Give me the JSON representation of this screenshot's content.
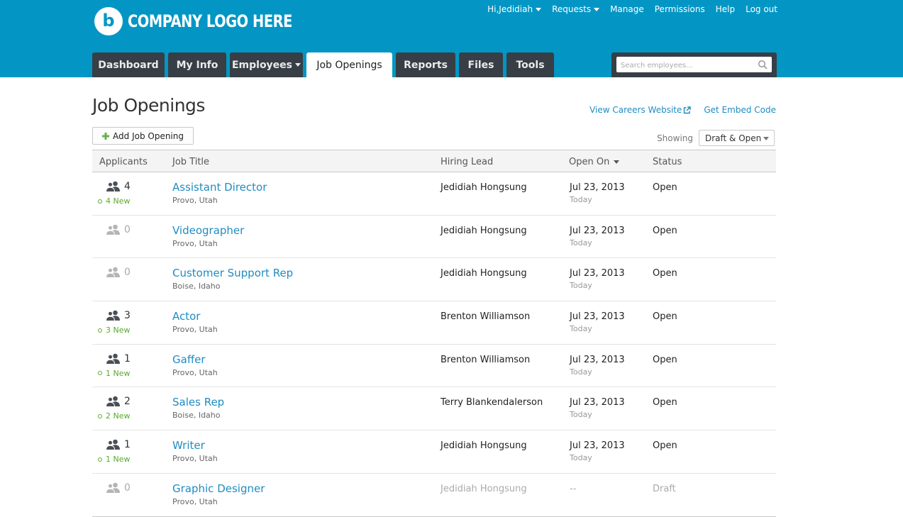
{
  "brand": {
    "logo_letter": "b",
    "logo_text": "COMPANY LOGO HERE",
    "header_color": "#0396c5"
  },
  "topnav": {
    "greeting": "Hi,Jedidiah",
    "requests": "Requests",
    "manage": "Manage",
    "permissions": "Permissions",
    "help": "Help",
    "logout": "Log out"
  },
  "tabs": [
    {
      "label": "Dashboard"
    },
    {
      "label": "My Info"
    },
    {
      "label": "Employees"
    },
    {
      "label": "Job Openings"
    },
    {
      "label": "Reports"
    },
    {
      "label": "Files"
    },
    {
      "label": "Tools"
    }
  ],
  "search": {
    "placeholder": "Search employees..."
  },
  "page": {
    "title": "Job Openings",
    "view_careers": "View Careers Website",
    "embed_code": "Get Embed Code",
    "add_button": "Add Job Opening",
    "showing_label": "Showing",
    "showing_value": "Draft & Open"
  },
  "table": {
    "headers": {
      "applicants": "Applicants",
      "job_title": "Job Title",
      "hiring_lead": "Hiring Lead",
      "open_on": "Open On",
      "status": "Status"
    },
    "rows": [
      {
        "count": "4",
        "new": "4 New",
        "title": "Assistant Director",
        "location": "Provo, Utah",
        "lead": "Jedidiah Hongsung",
        "date": "Jul 23, 2013",
        "date_sub": "Today",
        "status": "Open"
      },
      {
        "count": "0",
        "new": "",
        "title": "Videographer",
        "location": "Provo, Utah",
        "lead": "Jedidiah Hongsung",
        "date": "Jul 23, 2013",
        "date_sub": "Today",
        "status": "Open"
      },
      {
        "count": "0",
        "new": "",
        "title": "Customer Support Rep",
        "location": "Boise, Idaho",
        "lead": "Jedidiah Hongsung",
        "date": "Jul 23, 2013",
        "date_sub": "Today",
        "status": "Open"
      },
      {
        "count": "3",
        "new": "3 New",
        "title": "Actor",
        "location": "Provo, Utah",
        "lead": "Brenton Williamson",
        "date": "Jul 23, 2013",
        "date_sub": "Today",
        "status": "Open"
      },
      {
        "count": "1",
        "new": "1 New",
        "title": "Gaffer",
        "location": "Provo, Utah",
        "lead": "Brenton Williamson",
        "date": "Jul 23, 2013",
        "date_sub": "Today",
        "status": "Open"
      },
      {
        "count": "2",
        "new": "2 New",
        "title": "Sales Rep",
        "location": "Boise, Idaho",
        "lead": "Terry Blankendalerson",
        "date": "Jul 23, 2013",
        "date_sub": "Today",
        "status": "Open"
      },
      {
        "count": "1",
        "new": "1 New",
        "title": "Writer",
        "location": "Provo, Utah",
        "lead": "Jedidiah Hongsung",
        "date": "Jul 23, 2013",
        "date_sub": "Today",
        "status": "Open"
      },
      {
        "count": "0",
        "new": "",
        "title": "Graphic Designer",
        "location": "Provo, Utah",
        "lead": "Jedidiah Hongsung",
        "date": "--",
        "date_sub": "",
        "status": "Draft"
      }
    ]
  }
}
